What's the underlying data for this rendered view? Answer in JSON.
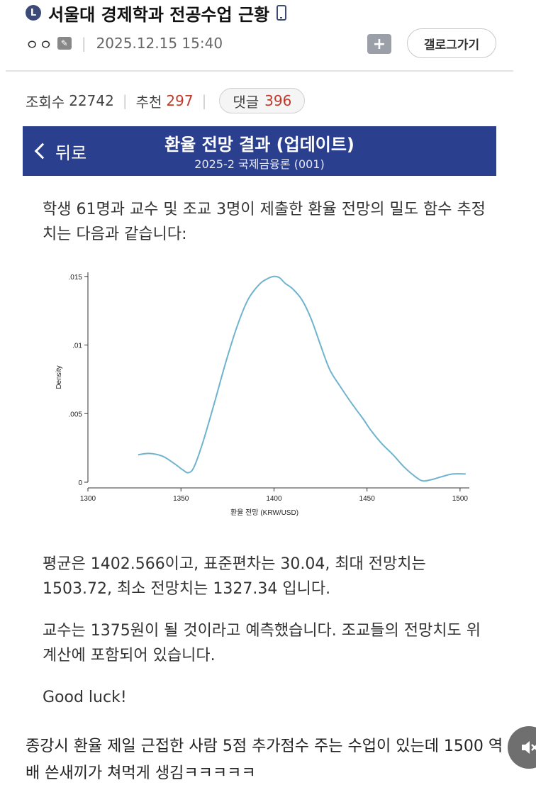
{
  "post": {
    "board_icon": "L",
    "title": "서울대 경제학과 전공수업 근황",
    "title_icon": "mobile-icon",
    "author": "ㅇㅇ",
    "date": "2025.12.15 15:40",
    "gallery_button": "갤로그가기",
    "add_button": "+",
    "views_label": "조회수",
    "views": "22742",
    "recommend_label": "추천",
    "recommend": "297",
    "comments_label": "댓글",
    "comments": "396"
  },
  "app_bar": {
    "back_label": "뒤로",
    "title": "환율 전망 결과 (업데이트)",
    "subtitle": "2025-2 국제금융론 (001)"
  },
  "body": {
    "intro": "학생 61명과 교수 및 조교 3명이 제출한 환율 전망의 밀도 함수 추정치는 다음과 같습니다:",
    "stats": "평균은 1402.566이고, 표준편차는 30.04, 최대 전망치는 1503.72, 최소 전망치는 1327.34 입니다.",
    "professor": "교수는 1375원이 될 것이라고 예측했습니다. 조교들의 전망치도 위 계산에 포함되어 있습니다.",
    "closing": "Good luck!"
  },
  "caption": "종강시 환율 제일 근접한 사람 5점 추가점수 주는 수업이 있는데 1500 역배 쓴새끼가 쳐먹게 생김ㅋㅋㅋㅋㅋ",
  "colors": {
    "app_bar": "#2b3f8f",
    "accent_red": "#c0392b",
    "line": "#6fb3cf"
  },
  "chart_data": {
    "type": "line",
    "xlabel": "환율 전망 (KRW/USD)",
    "ylabel": "Density",
    "xlim": [
      1300,
      1505
    ],
    "ylim": [
      0,
      0.0153
    ],
    "xticks": [
      1300,
      1350,
      1400,
      1450,
      1500
    ],
    "xtick_labels": [
      "1300",
      "1350",
      "1400",
      "1450",
      "1500"
    ],
    "yticks": [
      0,
      0.005,
      0.01,
      0.015
    ],
    "ytick_labels": [
      "0",
      ".005",
      ".01",
      ".015"
    ],
    "grid": false,
    "series": [
      {
        "x": [
          1327,
          1333,
          1340,
          1346,
          1351,
          1354,
          1357,
          1362,
          1368,
          1374,
          1380,
          1386,
          1392,
          1396,
          1400,
          1403,
          1406,
          1410,
          1415,
          1420,
          1425,
          1430,
          1436,
          1442,
          1448,
          1452,
          1458,
          1464,
          1470,
          1476,
          1480,
          1485,
          1490,
          1496,
          1503
        ],
        "y": [
          0.002,
          0.0021,
          0.0019,
          0.0014,
          0.0009,
          0.0007,
          0.0011,
          0.003,
          0.0058,
          0.0087,
          0.0113,
          0.0133,
          0.0144,
          0.0148,
          0.015,
          0.0149,
          0.0145,
          0.0141,
          0.0133,
          0.0119,
          0.01,
          0.0082,
          0.0069,
          0.0057,
          0.0046,
          0.0038,
          0.0028,
          0.002,
          0.0011,
          0.0004,
          0.0001,
          0.0002,
          0.0004,
          0.0006,
          0.0006
        ]
      }
    ]
  }
}
